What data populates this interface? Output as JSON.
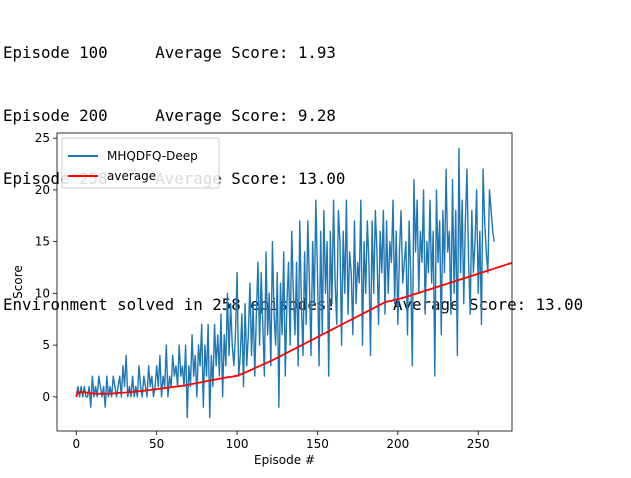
{
  "log": {
    "episode_lines": [
      {
        "label": "Episode 100",
        "score": "Average Score: 1.93"
      },
      {
        "label": "Episode 200",
        "score": "Average Score: 9.28"
      },
      {
        "label": "Episode 258",
        "score": "Average Score: 13.00"
      }
    ],
    "solved_line": {
      "message": "Environment solved in 258 episodes!",
      "score": "Average Score: 13.00"
    }
  },
  "chart_data": {
    "type": "line",
    "title": "",
    "xlabel": "Episode #",
    "ylabel": "Score",
    "xlim": [
      -12,
      271
    ],
    "ylim": [
      -3.3,
      25.5
    ],
    "xticks": [
      0,
      50,
      100,
      150,
      200,
      250
    ],
    "yticks": [
      0,
      5,
      10,
      15,
      20,
      25
    ],
    "grid": false,
    "legend": "top-left",
    "series": [
      {
        "name": "MHQDFQ-Deep",
        "color": "#1f77b4",
        "values": [
          0,
          1,
          0,
          1,
          0,
          1,
          0,
          0,
          1,
          -1,
          2,
          0,
          1,
          0,
          2,
          1,
          0,
          1,
          -1,
          2,
          0,
          1,
          0,
          2,
          1,
          0,
          1,
          2,
          0,
          3,
          1,
          4,
          0,
          1,
          0,
          2,
          0,
          1,
          0,
          3,
          1,
          0,
          2,
          1,
          0,
          3,
          1,
          2,
          0,
          1,
          3,
          1,
          4,
          0,
          2,
          1,
          5,
          0,
          2,
          1,
          4,
          2,
          3,
          1,
          5,
          2,
          3,
          1,
          5,
          -2,
          3,
          1,
          6,
          2,
          4,
          0,
          5,
          3,
          7,
          -1,
          5,
          2,
          7,
          -2,
          4,
          1,
          7,
          3,
          6,
          2,
          8,
          0,
          6,
          3,
          10,
          4,
          9,
          5,
          3,
          6,
          12,
          2,
          4,
          8,
          1,
          9,
          3,
          6,
          11,
          4,
          9,
          2,
          8,
          13,
          5,
          12,
          7,
          2,
          14,
          6,
          10,
          3,
          15,
          8,
          5,
          12,
          -1,
          11,
          6,
          14,
          2,
          9,
          13,
          5,
          16,
          10,
          6,
          13,
          3,
          17,
          9,
          4,
          14,
          7,
          17,
          11,
          4,
          15,
          9,
          19,
          12,
          3,
          16,
          6,
          18,
          10,
          15,
          2,
          16,
          9,
          19,
          11,
          7,
          18,
          15,
          5,
          16,
          10,
          19,
          8,
          14,
          12,
          6,
          17,
          9,
          13,
          11,
          19,
          5,
          15,
          10,
          17,
          13,
          4,
          17,
          10,
          18,
          14,
          7,
          16,
          12,
          18,
          8,
          17,
          10,
          15,
          13,
          19,
          9,
          16,
          7,
          14,
          18,
          11,
          13,
          15,
          6,
          17,
          12,
          3,
          21,
          14,
          19,
          10,
          16,
          13,
          20,
          8,
          15,
          12,
          19,
          11,
          16,
          2,
          20,
          13,
          17,
          6,
          18,
          12,
          22,
          14,
          16,
          8,
          21,
          10,
          18,
          4,
          24,
          12,
          19,
          9,
          17,
          22,
          13,
          8,
          18,
          12,
          15,
          20,
          10,
          16,
          7,
          22,
          17,
          14,
          12,
          20,
          18,
          16,
          15
        ]
      },
      {
        "name": "average",
        "color": "#ff0000",
        "values": [
          0.0,
          0.5,
          0.33,
          0.5,
          0.4,
          0.5,
          0.43,
          0.38,
          0.44,
          0.3,
          0.35,
          0.33,
          0.3,
          0.29,
          0.3,
          0.31,
          0.29,
          0.29,
          0.32,
          0.3,
          0.31,
          0.3,
          0.31,
          0.33,
          0.35,
          0.36,
          0.38,
          0.4,
          0.39,
          0.4,
          0.41,
          0.42,
          0.44,
          0.45,
          0.47,
          0.48,
          0.5,
          0.51,
          0.53,
          0.54,
          0.56,
          0.57,
          0.59,
          0.61,
          0.63,
          0.65,
          0.67,
          0.69,
          0.71,
          0.73,
          0.75,
          0.77,
          0.79,
          0.81,
          0.83,
          0.85,
          0.87,
          0.89,
          0.91,
          0.93,
          0.95,
          0.97,
          0.99,
          1.01,
          1.03,
          1.05,
          1.07,
          1.09,
          1.12,
          1.15,
          1.18,
          1.21,
          1.24,
          1.27,
          1.3,
          1.33,
          1.36,
          1.39,
          1.42,
          1.45,
          1.48,
          1.51,
          1.54,
          1.57,
          1.6,
          1.63,
          1.66,
          1.69,
          1.72,
          1.75,
          1.78,
          1.81,
          1.84,
          1.87,
          1.9,
          1.92,
          1.93,
          1.95,
          1.98,
          2.01,
          2.04,
          2.1,
          2.16,
          2.22,
          2.28,
          2.35,
          2.42,
          2.49,
          2.56,
          2.63,
          2.7,
          2.77,
          2.84,
          2.91,
          2.98,
          3.05,
          3.12,
          3.19,
          3.26,
          3.33,
          3.4,
          3.47,
          3.54,
          3.62,
          3.7,
          3.78,
          3.86,
          3.94,
          4.02,
          4.1,
          4.18,
          4.26,
          4.34,
          4.42,
          4.5,
          4.58,
          4.66,
          4.74,
          4.82,
          4.9,
          4.98,
          5.06,
          5.14,
          5.22,
          5.3,
          5.38,
          5.46,
          5.54,
          5.62,
          5.7,
          5.78,
          5.86,
          5.94,
          6.02,
          6.1,
          6.18,
          6.26,
          6.34,
          6.42,
          6.5,
          6.58,
          6.66,
          6.74,
          6.82,
          6.9,
          6.98,
          7.06,
          7.14,
          7.22,
          7.3,
          7.38,
          7.46,
          7.54,
          7.62,
          7.7,
          7.78,
          7.86,
          7.94,
          8.02,
          8.1,
          8.18,
          8.26,
          8.34,
          8.42,
          8.5,
          8.58,
          8.66,
          8.74,
          8.82,
          8.9,
          8.98,
          9.06,
          9.14,
          9.2,
          9.23,
          9.26,
          9.28,
          9.32,
          9.36,
          9.4,
          9.44,
          9.48,
          9.52,
          9.56,
          9.6,
          9.65,
          9.7,
          9.75,
          9.8,
          9.85,
          9.9,
          9.95,
          10.0,
          10.05,
          10.1,
          10.15,
          10.2,
          10.25,
          10.3,
          10.35,
          10.4,
          10.45,
          10.5,
          10.55,
          10.6,
          10.65,
          10.7,
          10.75,
          10.8,
          10.85,
          10.9,
          10.95,
          11.0,
          11.05,
          11.1,
          11.15,
          11.2,
          11.25,
          11.3,
          11.35,
          11.4,
          11.45,
          11.5,
          11.55,
          11.6,
          11.65,
          11.7,
          11.75,
          11.8,
          11.85,
          11.9,
          11.95,
          12.0,
          12.05,
          12.1,
          12.15,
          12.2,
          12.25,
          12.3,
          12.35,
          12.4,
          12.45,
          12.5,
          12.55,
          12.6,
          12.65,
          12.7,
          12.75,
          12.8,
          12.85,
          12.9,
          12.95,
          13.0
        ]
      }
    ]
  }
}
